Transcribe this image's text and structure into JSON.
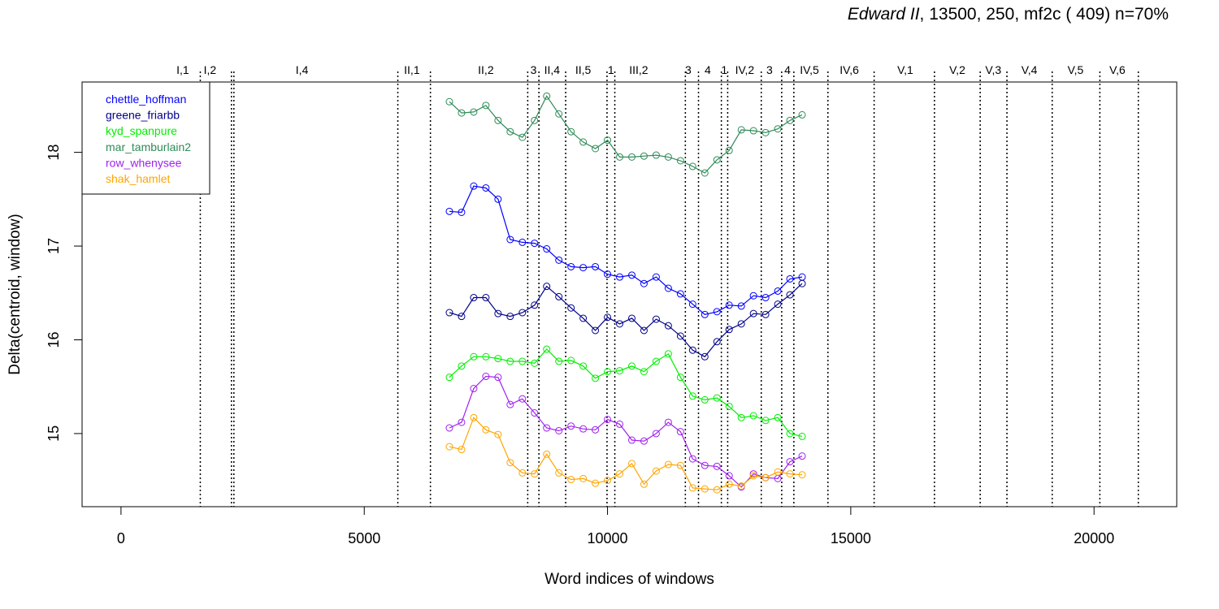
{
  "title": {
    "italic": "Edward II",
    "rest": ", 13500, 250, mf2c ( 409)   n=70%"
  },
  "chart_data": {
    "type": "line",
    "xlabel": "Word indices of windows",
    "ylabel": "Delta(centroid, window)",
    "xlim": [
      -800,
      21700
    ],
    "ylim": [
      14.22,
      18.75
    ],
    "xticks": [
      0,
      5000,
      10000,
      15000,
      20000
    ],
    "xtick_labels": [
      "0",
      "5000",
      "10000",
      "15000",
      "20000"
    ],
    "yticks": [
      15,
      16,
      17,
      18
    ],
    "ytick_labels": [
      "15",
      "16",
      "17",
      "18"
    ],
    "legend_position": "top-left",
    "grid": false,
    "scene_boundaries": [
      1630,
      2270,
      2320,
      5690,
      6360,
      8360,
      8590,
      9140,
      9990,
      10150,
      11600,
      11870,
      12340,
      12470,
      13160,
      13580,
      13830,
      14530,
      15480,
      16720,
      17660,
      18210,
      19140,
      20120,
      20910
    ],
    "scene_labels": [
      {
        "label": "I,1",
        "x": 1270
      },
      {
        "label": "I,2",
        "x": 1830
      },
      {
        "label": "I,4",
        "x": 3720
      },
      {
        "label": "II,1",
        "x": 5980
      },
      {
        "label": "II,2",
        "x": 7500
      },
      {
        "label": "3",
        "x": 8480
      },
      {
        "label": "II,4",
        "x": 8860
      },
      {
        "label": "II,5",
        "x": 9500
      },
      {
        "label": "1",
        "x": 10070
      },
      {
        "label": "III,2",
        "x": 10640
      },
      {
        "label": "3",
        "x": 11660
      },
      {
        "label": "4",
        "x": 12060
      },
      {
        "label": "1",
        "x": 12400
      },
      {
        "label": "IV,2",
        "x": 12820
      },
      {
        "label": "3",
        "x": 13330
      },
      {
        "label": "4",
        "x": 13700
      },
      {
        "label": "IV,5",
        "x": 14150
      },
      {
        "label": "IV,6",
        "x": 14970
      },
      {
        "label": "V,1",
        "x": 16120
      },
      {
        "label": "V,2",
        "x": 17190
      },
      {
        "label": "V,3",
        "x": 17930
      },
      {
        "label": "V,4",
        "x": 18670
      },
      {
        "label": "V,5",
        "x": 19620
      },
      {
        "label": "V,6",
        "x": 20480
      }
    ],
    "x": [
      6750,
      7000,
      7250,
      7500,
      7750,
      8000,
      8250,
      8500,
      8750,
      9000,
      9250,
      9500,
      9750,
      10000,
      10250,
      10500,
      10750,
      11000,
      11250,
      11500,
      11750,
      12000,
      12250,
      12500,
      12750,
      13000,
      13250,
      13500,
      13750,
      14000
    ],
    "series": [
      {
        "name": "chettle_hoffman",
        "color": "#0000ff",
        "values": [
          17.37,
          17.36,
          17.64,
          17.62,
          17.5,
          17.07,
          17.04,
          17.03,
          16.97,
          16.85,
          16.78,
          16.77,
          16.78,
          16.7,
          16.67,
          16.69,
          16.6,
          16.67,
          16.55,
          16.49,
          16.38,
          16.27,
          16.3,
          16.37,
          16.36,
          16.47,
          16.45,
          16.52,
          16.65,
          16.67
        ]
      },
      {
        "name": "greene_friarbb",
        "color": "#00008b",
        "values": [
          16.29,
          16.25,
          16.45,
          16.45,
          16.28,
          16.25,
          16.29,
          16.37,
          16.57,
          16.46,
          16.34,
          16.23,
          16.1,
          16.24,
          16.17,
          16.23,
          16.1,
          16.22,
          16.15,
          16.04,
          15.89,
          15.82,
          15.98,
          16.11,
          16.17,
          16.28,
          16.27,
          16.38,
          16.48,
          16.6
        ]
      },
      {
        "name": "kyd_spanpure",
        "color": "#00ee00",
        "values": [
          15.6,
          15.72,
          15.82,
          15.82,
          15.8,
          15.77,
          15.77,
          15.75,
          15.9,
          15.77,
          15.78,
          15.72,
          15.59,
          15.66,
          15.67,
          15.72,
          15.66,
          15.77,
          15.85,
          15.6,
          15.4,
          15.36,
          15.38,
          15.29,
          15.17,
          15.19,
          15.14,
          15.17,
          15.0,
          14.97
        ]
      },
      {
        "name": "mar_tamburlain2",
        "color": "#2e8b57",
        "values": [
          18.54,
          18.42,
          18.43,
          18.5,
          18.34,
          18.22,
          18.16,
          18.34,
          18.6,
          18.41,
          18.22,
          18.11,
          18.04,
          18.13,
          17.95,
          17.95,
          17.96,
          17.97,
          17.95,
          17.91,
          17.85,
          17.78,
          17.92,
          18.02,
          18.24,
          18.23,
          18.21,
          18.25,
          18.34,
          18.4
        ]
      },
      {
        "name": "row_whenysee",
        "color": "#a020f0",
        "values": [
          15.06,
          15.12,
          15.48,
          15.61,
          15.6,
          15.31,
          15.37,
          15.22,
          15.06,
          15.03,
          15.08,
          15.05,
          15.04,
          15.15,
          15.1,
          14.93,
          14.92,
          15.0,
          15.12,
          15.02,
          14.73,
          14.66,
          14.65,
          14.55,
          14.43,
          14.57,
          14.53,
          14.52,
          14.7,
          14.76
        ]
      },
      {
        "name": "shak_hamlet",
        "color": "#ffa500",
        "values": [
          14.86,
          14.83,
          15.17,
          15.04,
          14.99,
          14.69,
          14.58,
          14.57,
          14.78,
          14.58,
          14.51,
          14.52,
          14.47,
          14.5,
          14.57,
          14.68,
          14.46,
          14.6,
          14.67,
          14.66,
          14.42,
          14.41,
          14.4,
          14.46,
          14.44,
          14.55,
          14.53,
          14.59,
          14.57,
          14.56
        ]
      }
    ]
  }
}
